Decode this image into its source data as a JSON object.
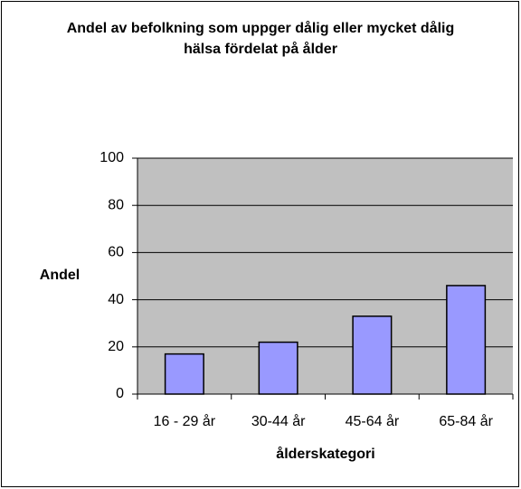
{
  "chart_data": {
    "type": "bar",
    "title": "Andel av befolkning som uppger dålig eller mycket dålig hälsa fördelat på ålder",
    "x_label": "ålderskategori",
    "y_label": "Andel",
    "categories": [
      "16 - 29 år",
      "30-44 år",
      "45-64 år",
      "65-84 år"
    ],
    "values": [
      17,
      22,
      33,
      46
    ],
    "color": "#9999ff",
    "ylim": [
      0,
      100
    ],
    "yticks": [
      0,
      20,
      40,
      60,
      80,
      100
    ],
    "grid": true
  }
}
